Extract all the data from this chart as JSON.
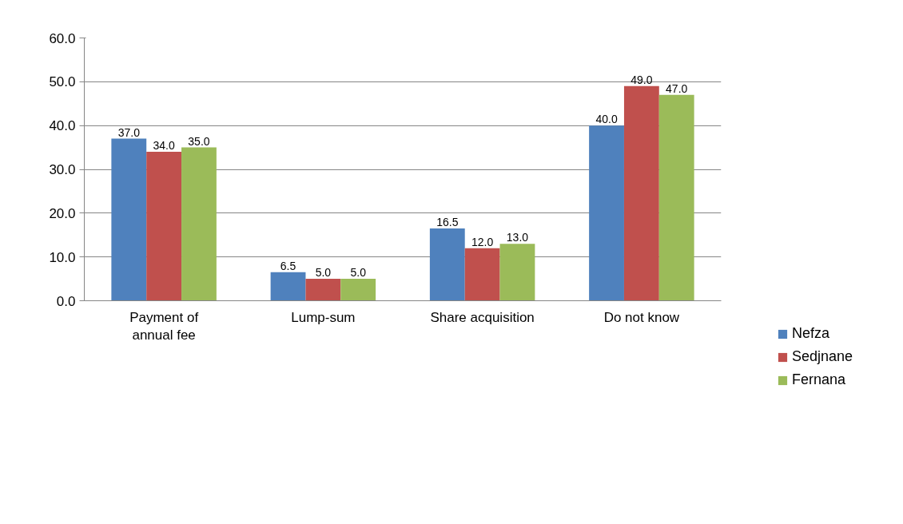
{
  "chart_data": {
    "type": "bar",
    "categories": [
      "Payment of\nannual fee",
      "Lump-sum",
      "Share acquisition",
      "Do not know"
    ],
    "series": [
      {
        "name": "Nefza",
        "color": "#4f81bd",
        "values": [
          37.0,
          6.5,
          16.5,
          40.0
        ],
        "value_labels": [
          "37.0",
          "6.5",
          "16.5",
          "40.0"
        ]
      },
      {
        "name": "Sedjnane",
        "color": "#c0504d",
        "values": [
          34.0,
          5.0,
          12.0,
          49.0
        ],
        "value_labels": [
          "34.0",
          "5.0",
          "12.0",
          "49.0"
        ]
      },
      {
        "name": "Fernana",
        "color": "#9bbb59",
        "values": [
          35.0,
          5.0,
          13.0,
          47.0
        ],
        "value_labels": [
          "35.0",
          "5.0",
          "13.0",
          "47.0"
        ]
      }
    ],
    "ylim": [
      0,
      60
    ],
    "yticks": [
      {
        "value": 0,
        "label": "0.0"
      },
      {
        "value": 10,
        "label": "10.0"
      },
      {
        "value": 20,
        "label": "20.0"
      },
      {
        "value": 30,
        "label": "30.0"
      },
      {
        "value": 40,
        "label": "40.0"
      },
      {
        "value": 50,
        "label": "50.0"
      },
      {
        "value": 60,
        "label": "60.0"
      }
    ],
    "grid": "y",
    "legend": "right"
  }
}
